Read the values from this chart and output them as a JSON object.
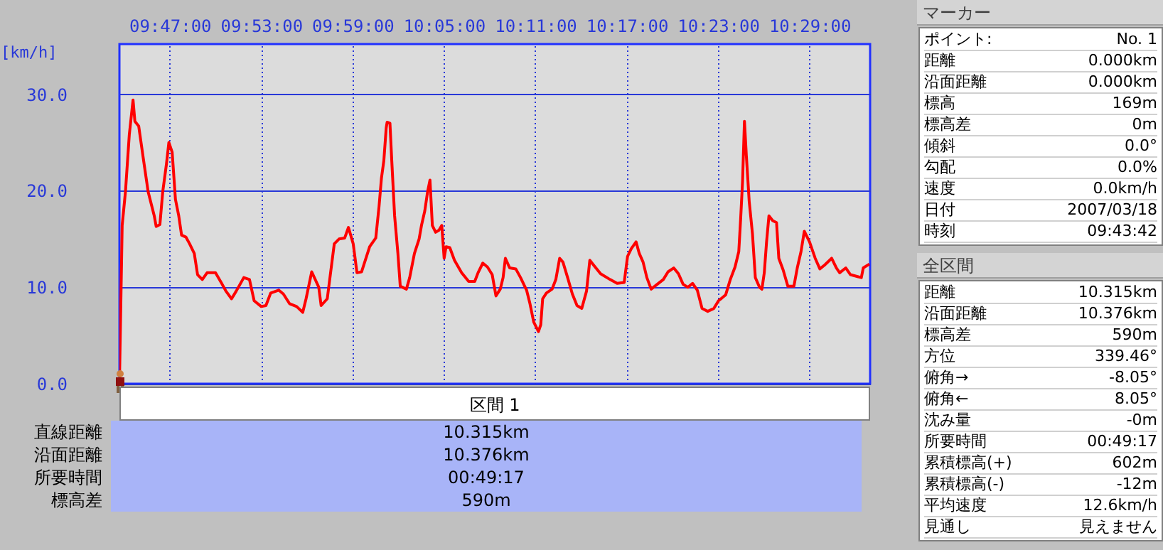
{
  "chart_data": [
    {
      "type": "line",
      "ylabel": "[km/h]",
      "color": "#ff0000",
      "grid": true,
      "xlim": [
        9.7283,
        10.5497
      ],
      "ylim": [
        0,
        35.2
      ],
      "xticks": [
        {
          "value": 9.783333,
          "label": "09:47:00"
        },
        {
          "value": 9.883333,
          "label": "09:53:00"
        },
        {
          "value": 9.983333,
          "label": "09:59:00"
        },
        {
          "value": 10.083333,
          "label": "10:05:00"
        },
        {
          "value": 10.183333,
          "label": "10:11:00"
        },
        {
          "value": 10.283333,
          "label": "10:17:00"
        },
        {
          "value": 10.383333,
          "label": "10:23:00"
        },
        {
          "value": 10.483333,
          "label": "10:29:00"
        }
      ],
      "yticks": [
        {
          "value": 0,
          "label": "0.0"
        },
        {
          "value": 10,
          "label": "10.0"
        },
        {
          "value": 20,
          "label": "20.0"
        },
        {
          "value": 30,
          "label": "30.0"
        }
      ],
      "x": [
        9.7283,
        9.7298,
        9.7313,
        9.7349,
        9.7391,
        9.7432,
        9.7452,
        9.7494,
        9.7545,
        9.7597,
        9.7664,
        9.7685,
        9.7726,
        9.7757,
        9.7798,
        9.7824,
        9.786,
        9.7896,
        9.7932,
        9.7963,
        9.801,
        9.8051,
        9.8102,
        9.8138,
        9.819,
        9.8242,
        9.8334,
        9.8396,
        9.8448,
        9.851,
        9.8561,
        9.8644,
        9.8706,
        9.8757,
        9.8835,
        9.8886,
        9.8938,
        9.9026,
        9.9077,
        9.9144,
        9.9222,
        9.9289,
        9.9325,
        9.9387,
        9.9464,
        9.949,
        9.9557,
        9.9634,
        9.9686,
        9.9748,
        9.9789,
        9.9841,
        9.9882,
        9.9933,
        10.0021,
        10.0088,
        10.0124,
        10.015,
        10.0176,
        10.0202,
        10.0212,
        10.0243,
        10.0263,
        10.0294,
        10.033,
        10.0356,
        10.0423,
        10.0459,
        10.0511,
        10.0562,
        10.0588,
        10.0624,
        10.0655,
        10.0681,
        10.0707,
        10.0743,
        10.0779,
        10.081,
        10.0836,
        10.0857,
        10.0898,
        10.0949,
        10.1027,
        10.1104,
        10.1171,
        10.1207,
        10.1259,
        10.131,
        10.1362,
        10.1403,
        10.145,
        10.1481,
        10.1506,
        10.1553,
        10.162,
        10.1672,
        10.1738,
        10.1775,
        10.1816,
        10.1868,
        10.1893,
        10.1914,
        10.1955,
        10.2017,
        10.2058,
        10.21,
        10.2136,
        10.2187,
        10.2239,
        10.229,
        10.2342,
        10.2394,
        10.243,
        10.2471,
        10.2548,
        10.2652,
        10.2729,
        10.2806,
        10.2843,
        10.2884,
        10.2936,
        10.2971,
        10.3013,
        10.3054,
        10.3101,
        10.3167,
        10.3234,
        10.3286,
        10.3348,
        10.34,
        10.3451,
        10.3503,
        10.3554,
        10.3606,
        10.3658,
        10.372,
        10.3787,
        10.3838,
        10.3916,
        10.3967,
        10.4019,
        10.406,
        10.4081,
        10.4101,
        10.4122,
        10.4143,
        10.4174,
        10.421,
        10.4241,
        10.4287,
        10.4313,
        10.4339,
        10.4364,
        10.439,
        10.4431,
        10.4473,
        10.4498,
        10.4545,
        10.4597,
        10.4663,
        10.47,
        10.4741,
        10.4777,
        10.4834,
        10.4896,
        10.4947,
        10.4999,
        10.5076,
        10.5128,
        10.5164,
        10.5231,
        10.5282,
        10.536,
        10.5401,
        10.5422,
        10.5489
      ],
      "values": [
        0,
        8.1,
        16.4,
        19.9,
        25.8,
        29.4,
        27.2,
        26.7,
        23.3,
        19.9,
        17.4,
        16.3,
        16.5,
        19.9,
        22.8,
        25.0,
        24.0,
        19.1,
        17.4,
        15.4,
        15.2,
        14.5,
        13.5,
        11.3,
        10.8,
        11.5,
        11.5,
        10.5,
        9.6,
        8.8,
        9.6,
        11.0,
        10.8,
        8.6,
        8.0,
        8.1,
        9.4,
        9.7,
        9.3,
        8.3,
        8.0,
        7.4,
        8.8,
        11.6,
        10.0,
        8.1,
        8.8,
        14.5,
        15.0,
        15.1,
        16.2,
        14.5,
        11.5,
        11.6,
        14.2,
        15.1,
        18.4,
        21.3,
        23.1,
        26.5,
        27.1,
        27.0,
        23.1,
        17.4,
        13.5,
        10.1,
        9.8,
        11.0,
        13.5,
        15.0,
        16.4,
        17.9,
        19.9,
        21.1,
        16.4,
        15.7,
        15.9,
        16.4,
        13.0,
        14.2,
        14.1,
        12.8,
        11.5,
        10.6,
        10.6,
        11.5,
        12.5,
        12.1,
        11.3,
        9.1,
        9.8,
        11.0,
        13.0,
        12.0,
        11.9,
        11.0,
        9.7,
        8.3,
        6.4,
        5.4,
        6.1,
        8.8,
        9.4,
        9.8,
        10.8,
        13.0,
        12.6,
        11.0,
        9.3,
        8.1,
        7.8,
        9.6,
        12.8,
        12.3,
        11.4,
        10.8,
        10.4,
        10.5,
        13.2,
        14.0,
        14.7,
        13.5,
        12.6,
        11.0,
        9.8,
        10.3,
        10.8,
        11.6,
        12.0,
        11.4,
        10.3,
        10.0,
        10.4,
        9.7,
        7.8,
        7.5,
        7.8,
        8.6,
        9.2,
        10.8,
        12.1,
        13.7,
        17.2,
        20.9,
        27.2,
        23.6,
        18.9,
        15.5,
        11.0,
        10.0,
        9.8,
        11.5,
        14.7,
        17.4,
        16.9,
        16.7,
        13.0,
        11.8,
        10.1,
        10.1,
        12.0,
        13.7,
        15.8,
        14.7,
        13.0,
        11.9,
        12.3,
        13.0,
        12.0,
        11.5,
        12.0,
        11.3,
        11.1,
        11.0,
        12.0,
        12.4
      ]
    },
    {
      "type": "other",
      "title": "区間 1",
      "annotations": [
        "直線距離",
        "10.315km",
        "沿面距離",
        "10.376km",
        "所要時間",
        "00:49:17",
        "標高差",
        "590m"
      ]
    },
    {
      "type": "other",
      "title": "マーカー",
      "annotations": [
        "ポイント:",
        "No. 1",
        "距離",
        "0.000km",
        "沿面距離",
        "0.000km",
        "標高",
        "169m",
        "標高差",
        "0m",
        "傾斜",
        "0.0°",
        "勾配",
        "0.0%",
        "速度",
        "0.0km/h",
        "日付",
        "2007/03/18",
        "時刻",
        "09:43:42"
      ]
    },
    {
      "type": "other",
      "title": "全区間",
      "annotations": [
        "距離",
        "10.315km",
        "沿面距離",
        "10.376km",
        "標高差",
        "590m",
        "方位",
        "339.46°",
        "俯角→",
        "-8.05°",
        "俯角←",
        "8.05°",
        "沈み量",
        "-0m",
        "所要時間",
        "00:49:17",
        "累積標高(+)",
        "602m",
        "累積標高(-)",
        "-12m",
        "平均速度",
        "12.6km/h",
        "見通し",
        "見えません"
      ]
    }
  ]
}
